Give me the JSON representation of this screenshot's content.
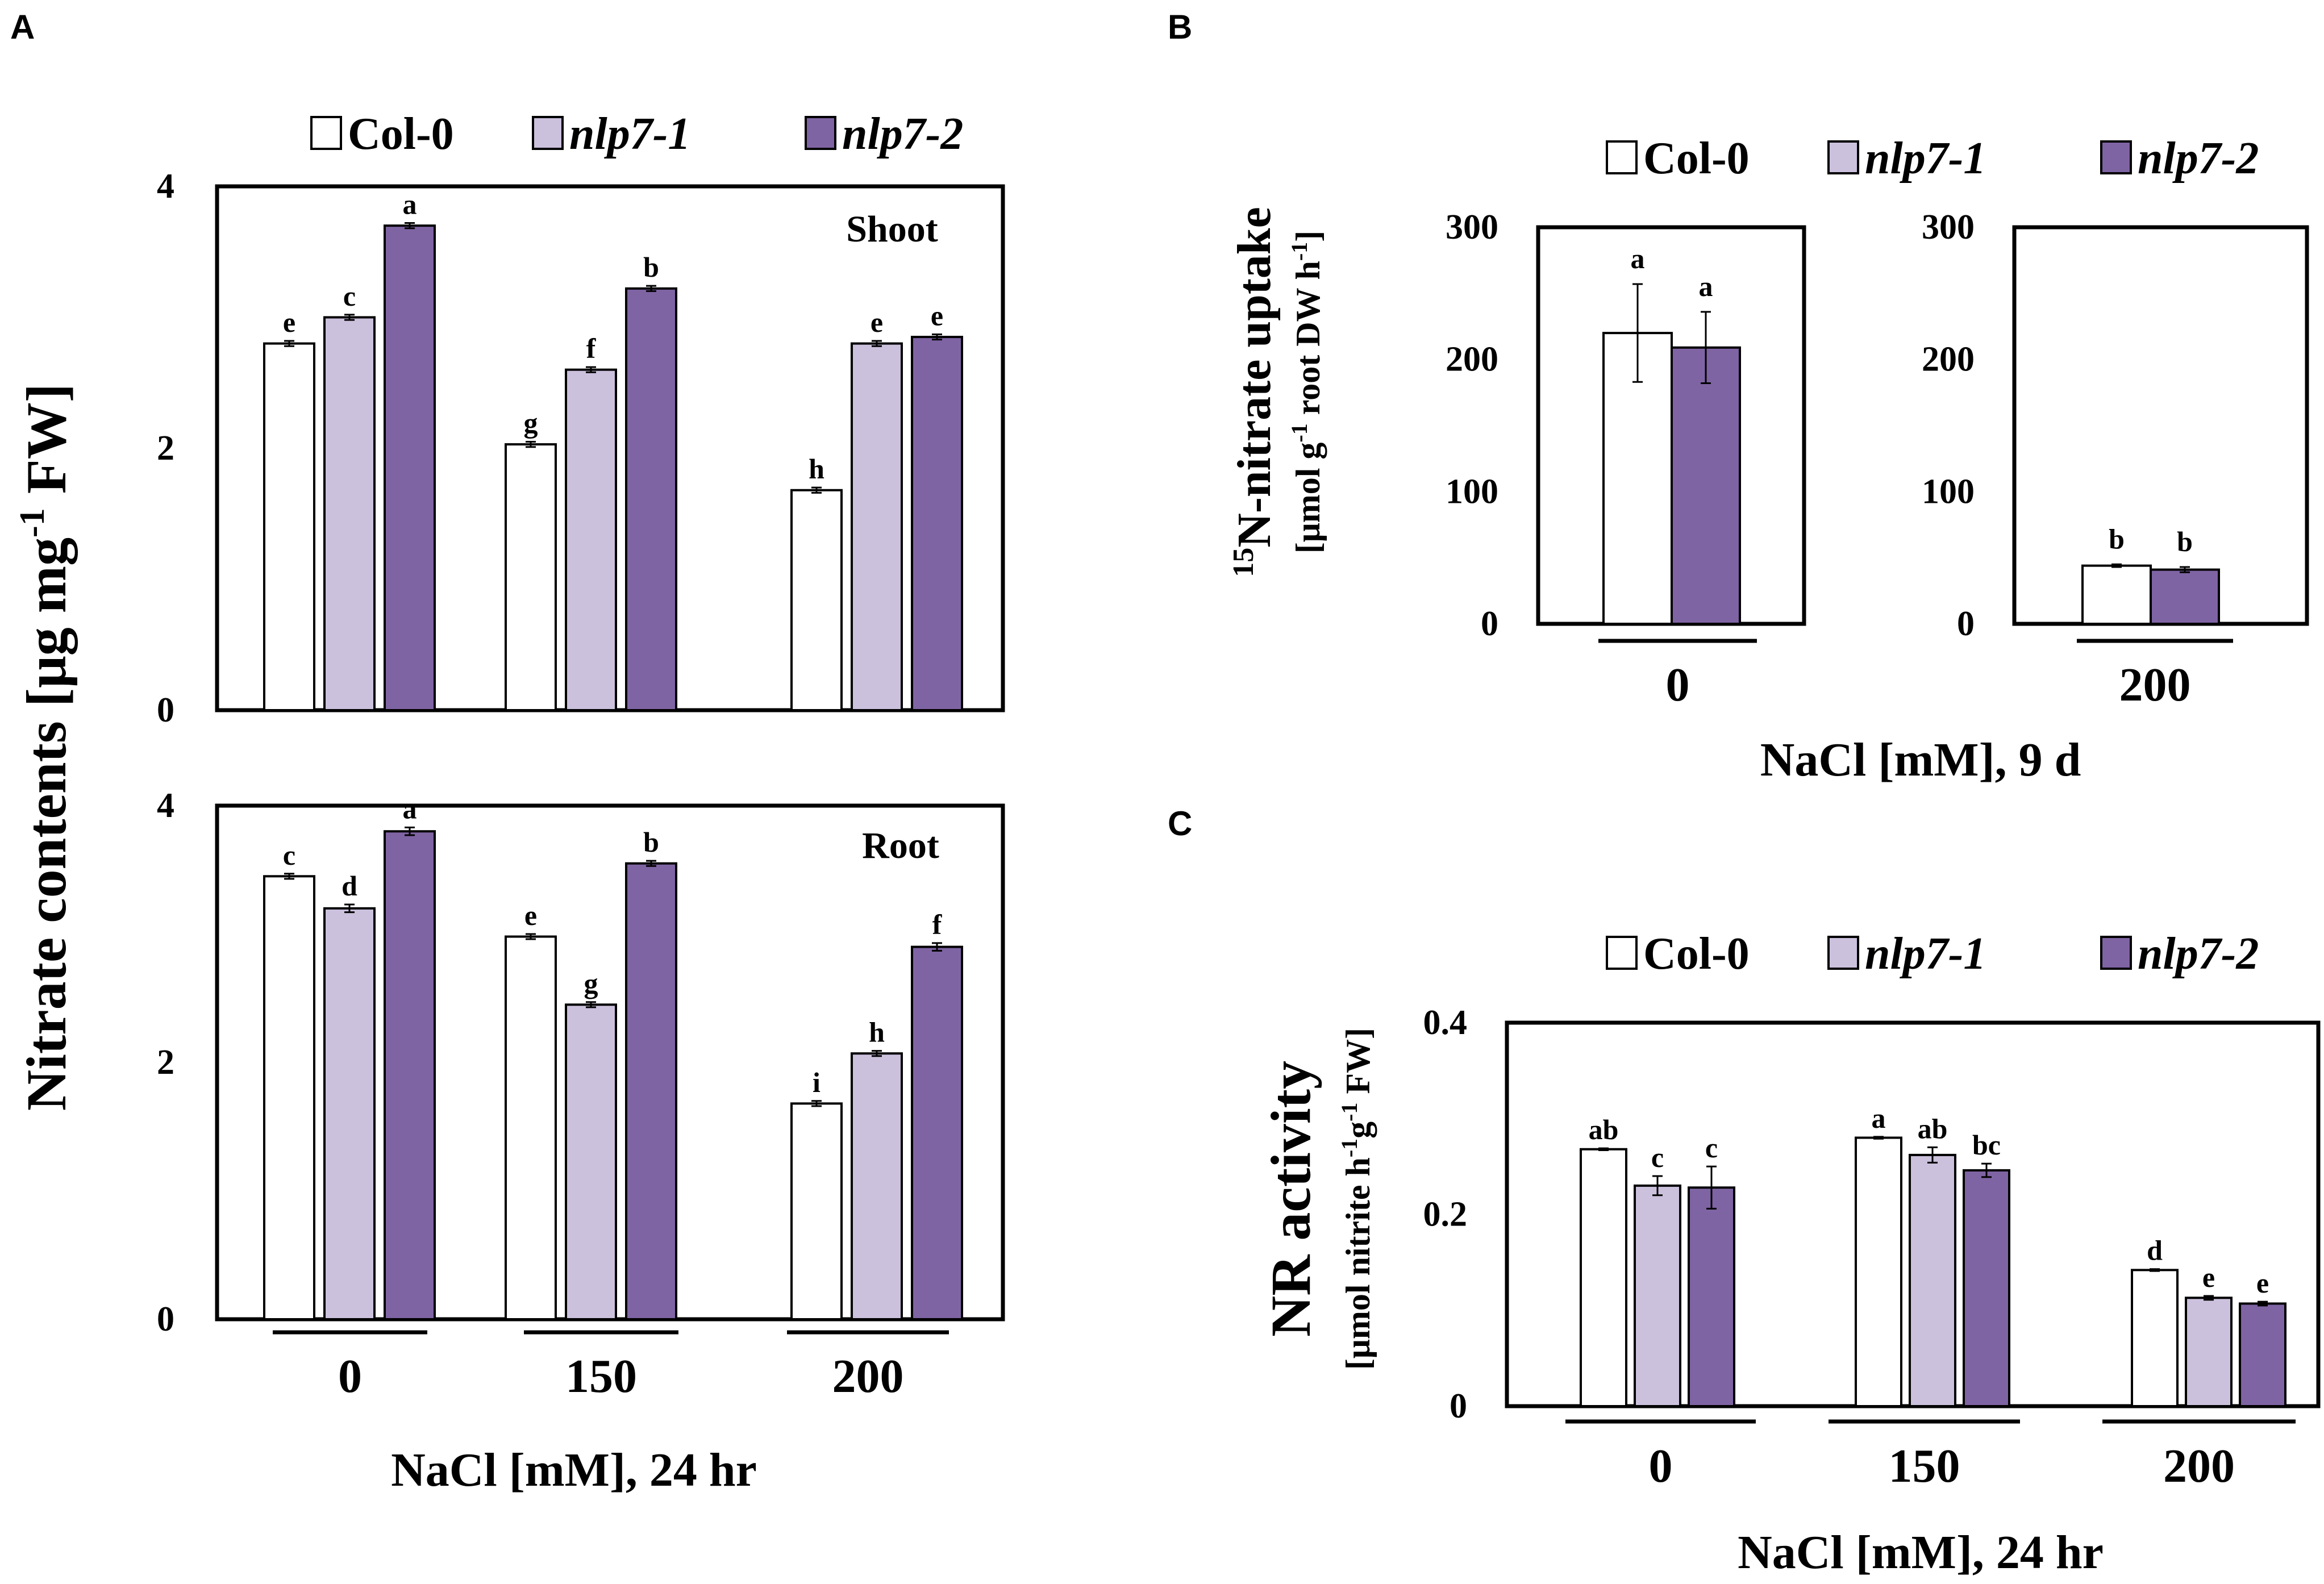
{
  "colors": {
    "col0_fill": "#ffffff",
    "nlp71_fill": "#cbc1dd",
    "nlp72_fill": "#7f64a4",
    "outline": "#000000"
  },
  "legend": {
    "entries": [
      {
        "key": "col0",
        "label": "Col-0",
        "italic": false
      },
      {
        "key": "nlp71",
        "label": "nlp7-1",
        "italic": true
      },
      {
        "key": "nlp72",
        "label": "nlp7-2",
        "italic": true
      }
    ]
  },
  "panel_letters": {
    "a": "A",
    "b": "B",
    "c": "C"
  },
  "panel_a": {
    "y_label_main": "Nitrate contents [μg mg",
    "y_label_sup": "-1",
    "y_label_tail": " FW]",
    "x_label": "NaCl [mM], 24 hr",
    "categories": [
      "0",
      "150",
      "200"
    ]
  },
  "panel_b": {
    "y_label_line1_sup": "15",
    "y_label_line1": "N-nitrate uptake",
    "y_label_line2": "[μmol g",
    "y_label_line2_sup1": "-1",
    "y_label_line2_mid": " root DW h",
    "y_label_line2_sup2": "-1",
    "y_label_line2_tail": "]",
    "x_label": "NaCl [mM], 9 d"
  },
  "panel_c": {
    "y_label_line1": "NR activity",
    "y_label_line2a": "[μmol nitrite h",
    "y_label_line2_sup1": "-1",
    "y_label_line2b": "g",
    "y_label_line2_sup2": "-1",
    "y_label_line2c": " FW]",
    "x_label": "NaCl [mM], 24 hr"
  },
  "chart_data": [
    {
      "id": "A-shoot",
      "type": "bar",
      "inset_label": "Shoot",
      "categories": [
        "0",
        "150",
        "200"
      ],
      "ylim": [
        0,
        4
      ],
      "yticks": [
        0,
        2,
        4
      ],
      "series": [
        {
          "name": "Col-0",
          "values": [
            2.8,
            2.03,
            1.68
          ],
          "errors": [
            0.02,
            0.02,
            0.02
          ],
          "letters": [
            "e",
            "g",
            "h"
          ]
        },
        {
          "name": "nlp7-1",
          "values": [
            3.0,
            2.6,
            2.8
          ],
          "errors": [
            0.02,
            0.02,
            0.02
          ],
          "letters": [
            "c",
            "f",
            "e"
          ]
        },
        {
          "name": "nlp7-2",
          "values": [
            3.7,
            3.22,
            2.85
          ],
          "errors": [
            0.02,
            0.02,
            0.02
          ],
          "letters": [
            "a",
            "b",
            "e"
          ]
        }
      ]
    },
    {
      "id": "A-root",
      "type": "bar",
      "inset_label": "Root",
      "categories": [
        "0",
        "150",
        "200"
      ],
      "ylim": [
        0,
        4
      ],
      "yticks": [
        0,
        2,
        4
      ],
      "series": [
        {
          "name": "Col-0",
          "values": [
            3.45,
            2.98,
            1.68
          ],
          "errors": [
            0.02,
            0.02,
            0.02
          ],
          "letters": [
            "c",
            "e",
            "i"
          ]
        },
        {
          "name": "nlp7-1",
          "values": [
            3.2,
            2.45,
            2.07
          ],
          "errors": [
            0.03,
            0.02,
            0.02
          ],
          "letters": [
            "d",
            "g",
            "h"
          ]
        },
        {
          "name": "nlp7-2",
          "values": [
            3.8,
            3.55,
            2.9
          ],
          "errors": [
            0.03,
            0.02,
            0.03
          ],
          "letters": [
            "a",
            "b",
            "f"
          ]
        }
      ]
    },
    {
      "id": "B-0",
      "type": "bar",
      "category": "0",
      "ylim": [
        0,
        300
      ],
      "yticks": [
        0,
        100,
        200,
        300
      ],
      "series": [
        {
          "name": "Col-0",
          "value": 220,
          "error": 37,
          "letter": "a"
        },
        {
          "name": "nlp7-2",
          "value": 209,
          "error": 27,
          "letter": "a"
        }
      ]
    },
    {
      "id": "B-200",
      "type": "bar",
      "category": "200",
      "ylim": [
        0,
        300
      ],
      "yticks": [
        0,
        100,
        200,
        300
      ],
      "series": [
        {
          "name": "Col-0",
          "value": 44,
          "error": 1,
          "letter": "b"
        },
        {
          "name": "nlp7-2",
          "value": 41,
          "error": 2,
          "letter": "b"
        }
      ]
    },
    {
      "id": "C",
      "type": "bar",
      "categories": [
        "0",
        "150",
        "200"
      ],
      "ylim": [
        0,
        0.4
      ],
      "yticks": [
        0,
        0.2,
        0.4
      ],
      "ytick_labels": [
        "0",
        "0.2",
        "0.4"
      ],
      "series": [
        {
          "name": "Col-0",
          "values": [
            0.268,
            0.28,
            0.142
          ],
          "errors": [
            0.001,
            0.001,
            0.001
          ],
          "letters": [
            "ab",
            "a",
            "d"
          ]
        },
        {
          "name": "nlp7-1",
          "values": [
            0.23,
            0.262,
            0.113
          ],
          "errors": [
            0.01,
            0.008,
            0.002
          ],
          "letters": [
            "c",
            "ab",
            "e"
          ]
        },
        {
          "name": "nlp7-2",
          "values": [
            0.228,
            0.246,
            0.107
          ],
          "errors": [
            0.022,
            0.007,
            0.002
          ],
          "letters": [
            "c",
            "bc",
            "e"
          ]
        }
      ]
    }
  ]
}
